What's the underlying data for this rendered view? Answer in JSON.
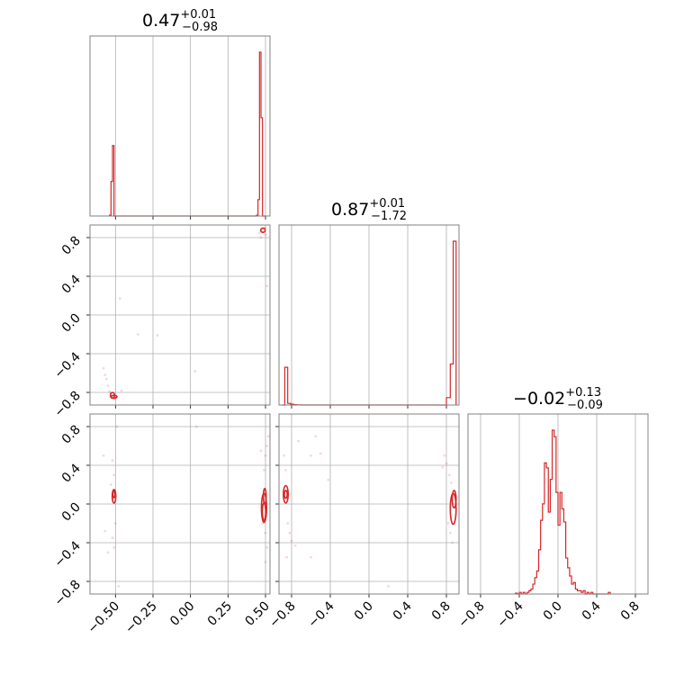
{
  "colors": {
    "series": "#d62728",
    "grid": "#b0b0b0",
    "frame": "#808080"
  },
  "chart_data": {
    "type": "corner",
    "grid": true,
    "params": [
      {
        "title_main": "0.47",
        "title_plus": "+0.01",
        "title_minus": "−0.98"
      },
      {
        "title_main": "0.87",
        "title_plus": "+0.01",
        "title_minus": "−1.72"
      },
      {
        "title_main": "−0.02",
        "title_plus": "+0.13",
        "title_minus": "−0.09"
      }
    ],
    "ticks": {
      "p1": {
        "values": [
          -0.5,
          -0.25,
          0.0,
          0.25,
          0.5
        ],
        "labels": [
          "−0.50",
          "−0.25",
          "0.00",
          "0.25",
          "0.50"
        ]
      },
      "p2": {
        "values": [
          -0.8,
          -0.4,
          0.0,
          0.4,
          0.8
        ],
        "labels": [
          "−0.8",
          "−0.4",
          "0.0",
          "0.4",
          "0.8"
        ]
      },
      "p3": {
        "values": [
          -0.8,
          -0.4,
          0.0,
          0.4,
          0.8
        ],
        "labels": [
          "−0.8",
          "−0.4",
          "0.0",
          "0.4",
          "0.8"
        ]
      }
    },
    "ranges": {
      "p1": [
        -0.67,
        0.53
      ],
      "p2": [
        -0.93,
        0.93
      ],
      "p3": [
        -0.93,
        0.93
      ]
    },
    "histograms": [
      {
        "param": 1,
        "edges": [
          -0.54,
          -0.53,
          -0.52,
          -0.51,
          -0.5,
          -0.49,
          0.44,
          0.45,
          0.46,
          0.47,
          0.48,
          0.49,
          0.5
        ],
        "heights": [
          0.005,
          0.21,
          0.43,
          0.0,
          0.0,
          0.0,
          0.005,
          0.1,
          1.0,
          0.6,
          0.0,
          0.0
        ]
      },
      {
        "param": 2,
        "edges": [
          -0.9,
          -0.87,
          -0.84,
          -0.81,
          -0.78,
          -0.75,
          -0.7,
          0.8,
          0.84,
          0.87,
          0.9
        ],
        "heights": [
          0.0,
          0.23,
          0.01,
          0.005,
          0.002,
          0.001,
          0.0,
          0.045,
          0.25,
          1.0
        ]
      },
      {
        "param": 3,
        "edges": [
          -0.44,
          -0.42,
          -0.4,
          -0.38,
          -0.36,
          -0.34,
          -0.32,
          -0.3,
          -0.28,
          -0.26,
          -0.24,
          -0.22,
          -0.2,
          -0.18,
          -0.16,
          -0.14,
          -0.12,
          -0.1,
          -0.08,
          -0.06,
          -0.04,
          -0.02,
          0.0,
          0.02,
          0.04,
          0.06,
          0.08,
          0.1,
          0.12,
          0.14,
          0.16,
          0.18,
          0.2,
          0.22,
          0.24,
          0.26,
          0.28,
          0.3,
          0.32,
          0.34,
          0.36,
          0.38,
          0.4,
          0.42,
          0.44,
          0.46,
          0.48,
          0.5,
          0.52,
          0.54
        ],
        "heights": [
          0.005,
          0.0,
          0.01,
          0.0,
          0.01,
          0.0,
          0.01,
          0.02,
          0.03,
          0.06,
          0.1,
          0.14,
          0.27,
          0.45,
          0.55,
          0.8,
          0.77,
          0.5,
          0.7,
          1.0,
          0.96,
          0.62,
          0.42,
          0.62,
          0.52,
          0.44,
          0.22,
          0.16,
          0.11,
          0.06,
          0.07,
          0.03,
          0.02,
          0.02,
          0.01,
          0.02,
          0.0,
          0.01,
          0.0,
          0.01,
          0.0,
          0.0,
          0.0,
          0.0,
          0.0,
          0.0,
          0.0,
          0.0,
          0.01
        ]
      }
    ],
    "pairs": [
      {
        "x": 1,
        "y": 2,
        "points": [
          [
            0.47,
            0.88
          ],
          [
            0.48,
            0.86
          ],
          [
            0.49,
            0.9
          ],
          [
            0.46,
            0.85
          ],
          [
            0.5,
            0.83
          ],
          [
            0.47,
            0.8
          ],
          [
            0.5,
            0.9
          ],
          [
            -0.53,
            -0.81
          ],
          [
            -0.52,
            -0.84
          ],
          [
            -0.51,
            -0.86
          ],
          [
            -0.54,
            -0.79
          ],
          [
            -0.55,
            -0.73
          ],
          [
            -0.57,
            -0.62
          ],
          [
            -0.58,
            -0.55
          ],
          [
            -0.56,
            -0.66
          ],
          [
            -0.47,
            0.17
          ],
          [
            -0.35,
            -0.2
          ],
          [
            -0.22,
            -0.21
          ],
          [
            0.03,
            -0.58
          ],
          [
            -0.46,
            -0.78
          ],
          [
            0.51,
            0.3
          ]
        ],
        "contours": [
          {
            "cx": 0.483,
            "cy": 0.875,
            "rx": 0.015,
            "ry": 0.022
          },
          {
            "cx": -0.52,
            "cy": -0.83,
            "rx": 0.014,
            "ry": 0.03
          },
          {
            "cx": -0.51,
            "cy": -0.845,
            "rx": 0.02,
            "ry": 0.015
          }
        ]
      },
      {
        "x": 1,
        "y": 3,
        "points": [
          [
            -0.52,
            0.45
          ],
          [
            -0.51,
            0.3
          ],
          [
            -0.53,
            0.2
          ],
          [
            -0.5,
            -0.2
          ],
          [
            -0.52,
            -0.35
          ],
          [
            -0.51,
            -0.45
          ],
          [
            -0.55,
            -0.5
          ],
          [
            -0.49,
            0.8
          ],
          [
            -0.48,
            -0.85
          ],
          [
            -0.58,
            0.5
          ],
          [
            -0.57,
            -0.28
          ],
          [
            0.5,
            0.5
          ],
          [
            0.49,
            0.35
          ],
          [
            0.5,
            -0.3
          ],
          [
            0.51,
            -0.45
          ],
          [
            0.47,
            0.55
          ],
          [
            0.51,
            0.6
          ],
          [
            0.48,
            -0.2
          ],
          [
            0.52,
            0.7
          ],
          [
            0.5,
            -0.6
          ],
          [
            0.04,
            0.8
          ]
        ],
        "contours": [
          {
            "cx": -0.51,
            "cy": 0.08,
            "rx": 0.012,
            "ry": 0.07
          },
          {
            "cx": -0.51,
            "cy": 0.1,
            "rx": 0.007,
            "ry": 0.035
          },
          {
            "cx": 0.49,
            "cy": -0.04,
            "rx": 0.017,
            "ry": 0.15
          },
          {
            "cx": 0.49,
            "cy": -0.08,
            "rx": 0.011,
            "ry": 0.09
          },
          {
            "cx": 0.495,
            "cy": 0.08,
            "rx": 0.009,
            "ry": 0.08
          }
        ]
      },
      {
        "x": 2,
        "y": 3,
        "points": [
          [
            -0.88,
            0.5
          ],
          [
            -0.86,
            0.35
          ],
          [
            -0.84,
            -0.2
          ],
          [
            -0.82,
            -0.3
          ],
          [
            -0.8,
            -0.38
          ],
          [
            -0.76,
            -0.43
          ],
          [
            -0.73,
            0.65
          ],
          [
            -0.6,
            0.5
          ],
          [
            -0.55,
            0.7
          ],
          [
            -0.5,
            0.52
          ],
          [
            -0.42,
            0.25
          ],
          [
            -0.85,
            -0.55
          ],
          [
            -0.6,
            -0.55
          ],
          [
            0.2,
            -0.85
          ],
          [
            0.8,
            0.42
          ],
          [
            0.83,
            0.3
          ],
          [
            0.85,
            0.22
          ],
          [
            0.82,
            -0.2
          ],
          [
            0.84,
            -0.3
          ],
          [
            0.78,
            0.5
          ],
          [
            0.76,
            0.38
          ],
          [
            0.86,
            -0.4
          ]
        ],
        "contours": [
          {
            "cx": -0.86,
            "cy": 0.1,
            "rx": 0.025,
            "ry": 0.09
          },
          {
            "cx": -0.86,
            "cy": 0.1,
            "rx": 0.015,
            "ry": 0.04
          },
          {
            "cx": 0.87,
            "cy": -0.05,
            "rx": 0.03,
            "ry": 0.16
          },
          {
            "cx": 0.88,
            "cy": 0.05,
            "rx": 0.02,
            "ry": 0.09
          }
        ]
      }
    ]
  }
}
